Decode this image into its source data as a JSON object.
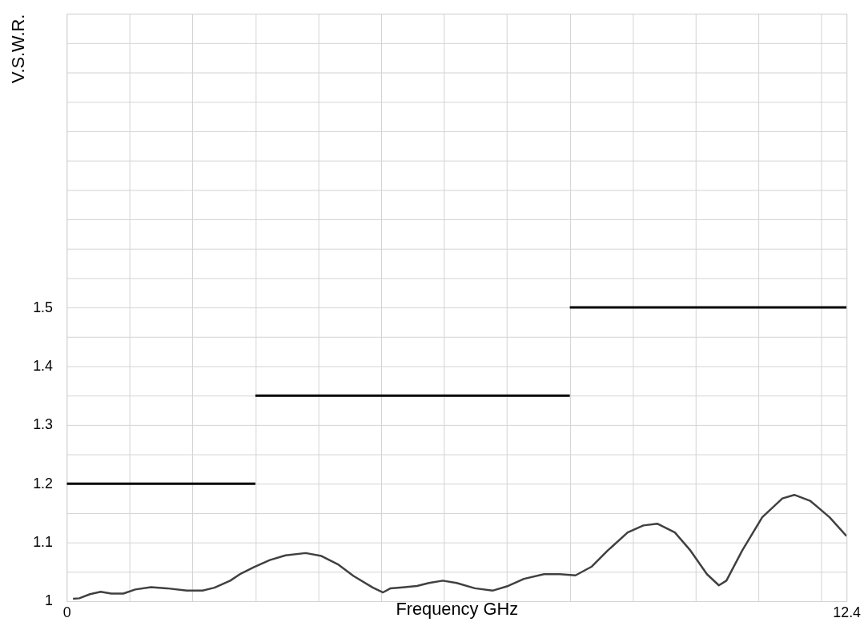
{
  "chart_data": {
    "type": "line",
    "xlabel": "Frequency GHz",
    "ylabel": "V.S.W.R.",
    "xlim": [
      0,
      12.4
    ],
    "ylim": [
      1,
      2
    ],
    "xticks": [
      0,
      {
        "value": 1,
        "label": null
      },
      {
        "value": 2,
        "label": null
      },
      {
        "value": 3,
        "label": null
      },
      {
        "value": 4,
        "label": null
      },
      {
        "value": 5,
        "label": null
      },
      {
        "value": 6,
        "label": null
      },
      {
        "value": 7,
        "label": null
      },
      {
        "value": 8,
        "label": null
      },
      {
        "value": 9,
        "label": null
      },
      {
        "value": 10,
        "label": null
      },
      {
        "value": 11,
        "label": null
      },
      {
        "value": 12,
        "label": null
      },
      12.4
    ],
    "yticks": [
      1,
      {
        "value": 1.05,
        "label": null
      },
      1.1,
      {
        "value": 1.15,
        "label": null
      },
      1.2,
      {
        "value": 1.25,
        "label": null
      },
      1.3,
      {
        "value": 1.35,
        "label": null
      },
      1.4,
      {
        "value": 1.45,
        "label": null
      },
      1.5,
      {
        "value": 1.55,
        "label": null
      },
      {
        "value": 1.6,
        "label": null
      },
      {
        "value": 1.65,
        "label": null
      },
      {
        "value": 1.7,
        "label": null
      },
      {
        "value": 1.75,
        "label": null
      },
      {
        "value": 1.8,
        "label": null
      },
      {
        "value": 1.85,
        "label": null
      },
      {
        "value": 1.9,
        "label": null
      },
      {
        "value": 1.95,
        "label": null
      },
      {
        "value": 2,
        "label": null
      }
    ],
    "grid": true,
    "marker": "none",
    "line_style": "solid",
    "series": [
      {
        "color": "#000000",
        "x": [
          0,
          3
        ],
        "values": [
          1.2,
          1.2
        ]
      },
      {
        "color": "#000000",
        "x": [
          3,
          8
        ],
        "values": [
          1.35,
          1.35
        ]
      },
      {
        "color": "#000000",
        "x": [
          8,
          12.4
        ],
        "values": [
          1.5,
          1.5
        ]
      },
      {
        "color": "#404040",
        "x": [
          0.1,
          0.2,
          0.37,
          0.54,
          0.71,
          0.9,
          1.09,
          1.34,
          1.59,
          1.91,
          2.16,
          2.35,
          2.6,
          2.77,
          2.98,
          3.23,
          3.48,
          3.8,
          4.05,
          4.31,
          4.56,
          4.87,
          5.03,
          5.15,
          5.38,
          5.57,
          5.76,
          5.98,
          6.2,
          6.49,
          6.77,
          7.02,
          7.27,
          7.59,
          7.84,
          8.09,
          8.35,
          8.6,
          8.92,
          9.17,
          9.39,
          9.67,
          9.92,
          10.18,
          10.37,
          10.49,
          10.74,
          11.06,
          11.38,
          11.57,
          11.82,
          12.13,
          12.4
        ],
        "values": [
          1.004,
          1.005,
          1.012,
          1.016,
          1.013,
          1.013,
          1.02,
          1.024,
          1.022,
          1.018,
          1.018,
          1.023,
          1.035,
          1.047,
          1.058,
          1.07,
          1.078,
          1.082,
          1.077,
          1.063,
          1.043,
          1.023,
          1.015,
          1.022,
          1.024,
          1.026,
          1.031,
          1.035,
          1.031,
          1.022,
          1.018,
          1.026,
          1.038,
          1.046,
          1.046,
          1.044,
          1.059,
          1.086,
          1.117,
          1.129,
          1.132,
          1.117,
          1.086,
          1.046,
          1.027,
          1.035,
          1.086,
          1.143,
          1.175,
          1.181,
          1.171,
          1.143,
          1.111
        ]
      }
    ]
  }
}
